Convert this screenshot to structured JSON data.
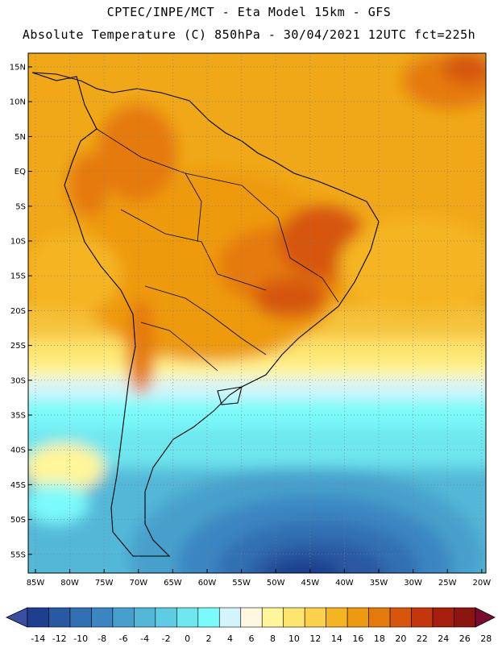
{
  "title_line1": "CPTEC/INPE/MCT -  Eta Model 15km - GFS",
  "title_line2": "Absolute Temperature (C) 850hPa - 30/04/2021 12UTC fct=225h",
  "lat_labels": [
    "15N",
    "10N",
    "5N",
    "EQ",
    "5S",
    "10S",
    "15S",
    "20S",
    "25S",
    "30S",
    "35S",
    "40S",
    "45S",
    "50S",
    "55S"
  ],
  "lon_labels": [
    "85W",
    "80W",
    "75W",
    "70W",
    "65W",
    "60W",
    "55W",
    "50W",
    "45W",
    "40W",
    "35W",
    "30W",
    "25W",
    "20W"
  ],
  "colorbar": {
    "colors": [
      "#1d3f8e",
      "#2a59a3",
      "#3270b3",
      "#3b86c2",
      "#47a0cc",
      "#53b8d8",
      "#5ecde3",
      "#6ee6ee",
      "#7afafa",
      "#d4f4fb",
      "#fff8e0",
      "#fff59a",
      "#fde56e",
      "#fbd04a",
      "#f5b523",
      "#ee9a10",
      "#e57a0c",
      "#d6560b",
      "#c4360c",
      "#a81e0e",
      "#8a160f"
    ],
    "labels": [
      "-14",
      "-12",
      "-10",
      "-8",
      "-6",
      "-4",
      "-2",
      "0",
      "2",
      "4",
      "6",
      "8",
      "10",
      "12",
      "14",
      "16",
      "18",
      "20",
      "22",
      "24",
      "26",
      "28"
    ],
    "under_color": "#3a4fa0",
    "over_color": "#7a0a2e"
  }
}
